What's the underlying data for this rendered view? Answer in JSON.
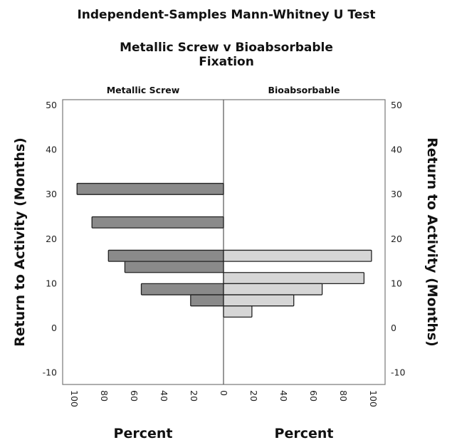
{
  "chart_data": {
    "type": "bar",
    "orientation": "horizontal-back-to-back",
    "title": "Independent-Samples Mann-Whitney U Test",
    "subtitle": [
      "Metallic Screw v Bioabsorbable",
      "Fixation"
    ],
    "ylabel": "Return to Activity (Months)",
    "xlabel": "Percent",
    "ylim": [
      -12.5,
      52
    ],
    "yticks": [
      50,
      40,
      30,
      20,
      10,
      0,
      -10
    ],
    "xlim": [
      0,
      100
    ],
    "xticks": [
      100,
      80,
      60,
      40,
      20,
      0
    ],
    "xticks_right": [
      20,
      40,
      60,
      80,
      100
    ],
    "grid": false,
    "series": [
      {
        "name": "Metallic Screw",
        "side": "left",
        "color": "#8a8a8a",
        "bins": [
          [
            30,
            32.5
          ],
          [
            22.5,
            25
          ],
          [
            15,
            17.5
          ],
          [
            12.5,
            15
          ],
          [
            7.5,
            10
          ],
          [
            5,
            7.5
          ]
        ],
        "values": [
          98,
          88,
          77,
          66,
          55,
          22
        ]
      },
      {
        "name": "Bioabsorbable",
        "side": "right",
        "color": "#d6d6d6",
        "bins": [
          [
            15,
            17.5
          ],
          [
            10,
            12.5
          ],
          [
            7.5,
            10
          ],
          [
            5,
            7.5
          ],
          [
            2.5,
            5
          ]
        ],
        "values": [
          99,
          94,
          66,
          47,
          19
        ]
      }
    ]
  }
}
